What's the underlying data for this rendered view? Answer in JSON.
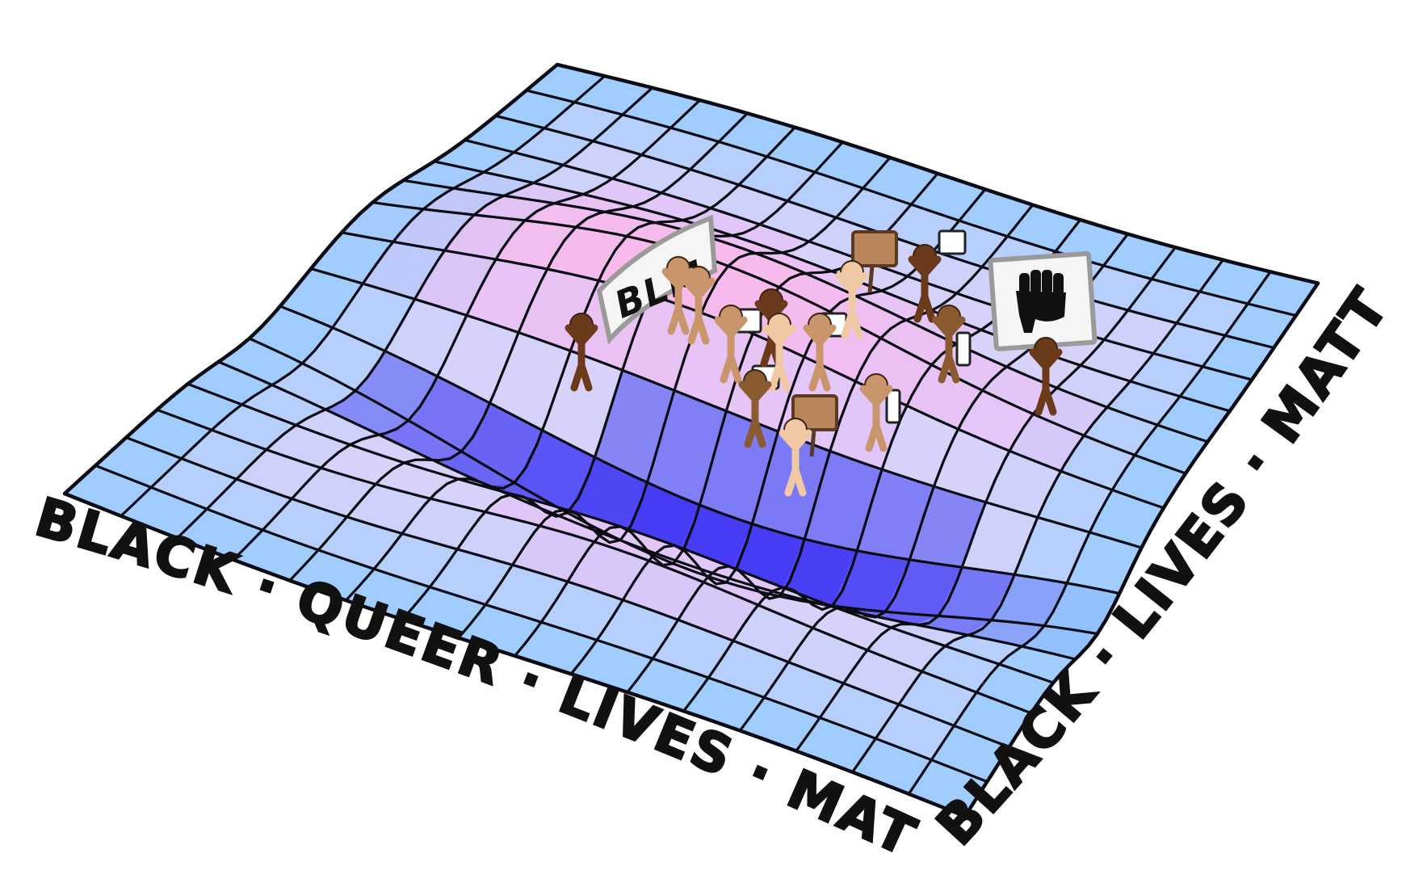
{
  "artwork": {
    "front_edge_text": "BLACK · QUEER · LIVES · MATTER ·",
    "side_edge_text": "BLACK · LIVES · MATTER",
    "banner_text": "BLM",
    "placard_icon": "raised-fist-icon",
    "colors": {
      "deep_blue": "#4a3fe0",
      "light_blue": "#a9d8ff",
      "pink": "#fbbde8",
      "lavender": "#d9c6f7",
      "grid_line": "#0b0b14",
      "banner": "#f5f5f5",
      "sign_brown": "#b8865a"
    }
  }
}
